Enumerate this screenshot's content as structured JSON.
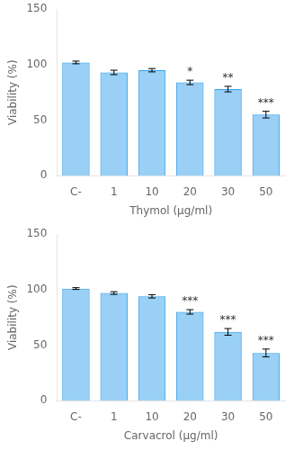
{
  "chart_data": [
    {
      "type": "bar",
      "categories": [
        "C-",
        "1",
        "10",
        "20",
        "30",
        "50"
      ],
      "values": [
        102,
        93,
        95,
        84,
        78,
        55
      ],
      "errors": [
        1.2,
        2.0,
        1.5,
        2.0,
        2.5,
        3.0
      ],
      "annotations": [
        null,
        null,
        null,
        "*",
        "**",
        "***"
      ],
      "xlabel": "Thymol (μg/ml)",
      "ylabel": "Viability (%)",
      "ylim": [
        0,
        150
      ],
      "yticks": [
        0,
        50,
        100,
        150
      ],
      "grid": false
    },
    {
      "type": "bar",
      "categories": [
        "C-",
        "1",
        "10",
        "20",
        "30",
        "50"
      ],
      "values": [
        101,
        97,
        94,
        80,
        62,
        43
      ],
      "errors": [
        0.8,
        1.2,
        1.5,
        2.0,
        3.0,
        3.5
      ],
      "annotations": [
        null,
        null,
        null,
        "***",
        "***",
        "***"
      ],
      "xlabel": "Carvacrol (μg/ml)",
      "ylabel": "Viability (%)",
      "ylim": [
        0,
        150
      ],
      "yticks": [
        0,
        50,
        100,
        150
      ],
      "grid": false
    }
  ]
}
